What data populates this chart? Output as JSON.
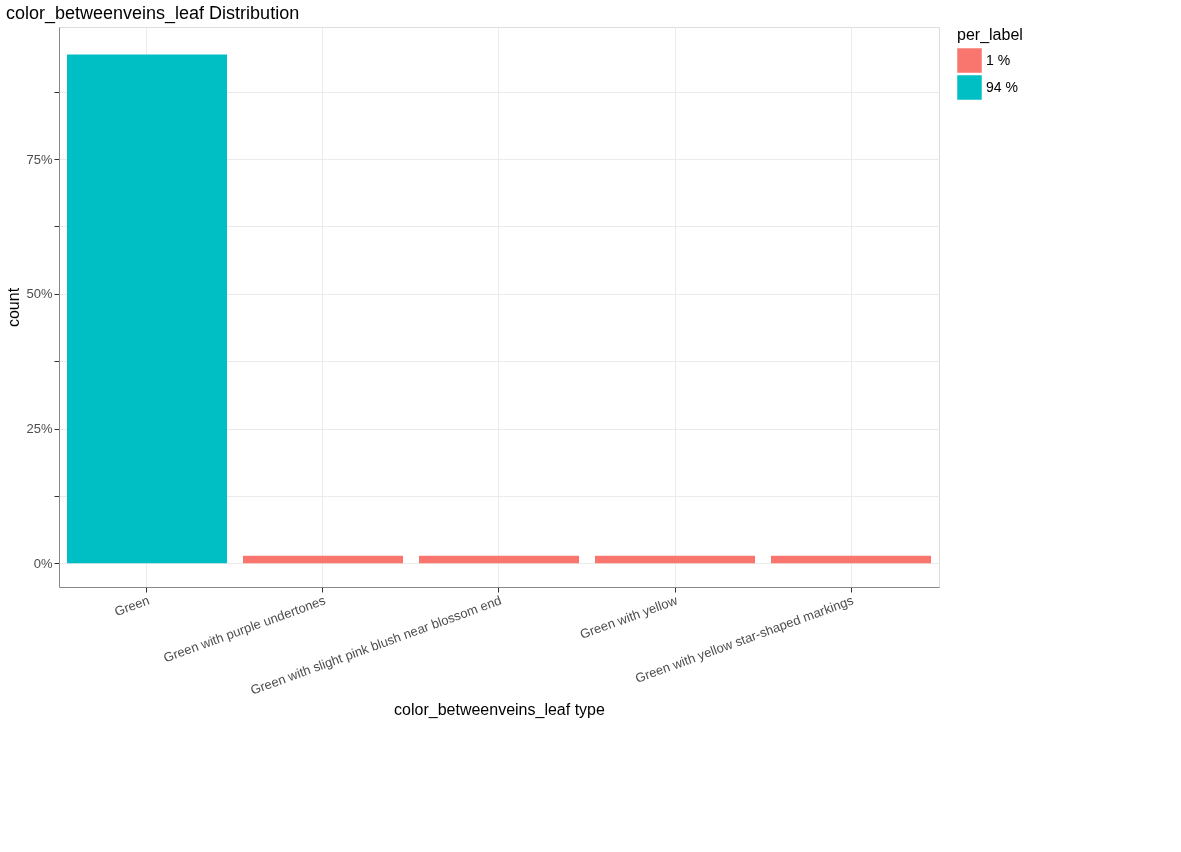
{
  "chart_data": {
    "type": "bar",
    "title": "color_betweenveins_leaf Distribution",
    "xlabel": "color_betweenveins_leaf type",
    "ylabel": "count",
    "categories": [
      "Green",
      "Green with purple undertones",
      "Green with slight pink blush near blossom end",
      "Green with yellow",
      "Green with yellow star-shaped markings"
    ],
    "series": [
      {
        "name": "1 %",
        "color": "#f8766d",
        "values": [
          null,
          1.4,
          1.4,
          1.4,
          1.4
        ]
      },
      {
        "name": "94 %",
        "color": "#00bfc4",
        "values": [
          94.4,
          null,
          null,
          null,
          null
        ]
      }
    ],
    "legend_title": "per_label",
    "legend": "right",
    "ylim": [
      -4.4,
      99.5
    ],
    "yticks": [
      {
        "value": 0,
        "label": "0%"
      },
      {
        "value": 12.5,
        "label": null
      },
      {
        "value": 25,
        "label": "25%"
      },
      {
        "value": 37.5,
        "label": null
      },
      {
        "value": 50,
        "label": "50%"
      },
      {
        "value": 62.5,
        "label": null
      },
      {
        "value": 75,
        "label": "75%"
      },
      {
        "value": 87.5,
        "label": null
      }
    ],
    "grid": true
  }
}
